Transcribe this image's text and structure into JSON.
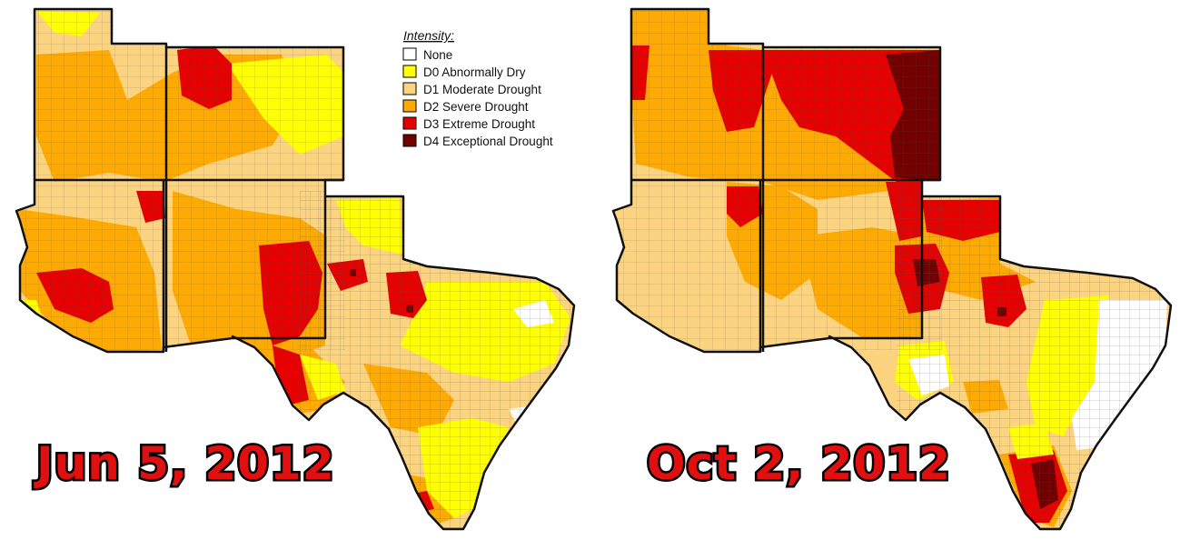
{
  "legend": {
    "title": "Intensity:",
    "items": [
      {
        "code": "none",
        "label": "None",
        "color": "#ffffff"
      },
      {
        "code": "D0",
        "label": "D0 Abnormally Dry",
        "color": "#ffff00"
      },
      {
        "code": "D1",
        "label": "D1 Moderate Drought",
        "color": "#fcd37f"
      },
      {
        "code": "D2",
        "label": "D2 Severe Drought",
        "color": "#ffaa00"
      },
      {
        "code": "D3",
        "label": "D3 Extreme Drought",
        "color": "#e60000"
      },
      {
        "code": "D4",
        "label": "D4 Exceptional Drought",
        "color": "#730000"
      }
    ]
  },
  "maps": [
    {
      "id": "left",
      "date_label": "Jun 5, 2012"
    },
    {
      "id": "right",
      "date_label": "Oct 2, 2012"
    }
  ]
}
